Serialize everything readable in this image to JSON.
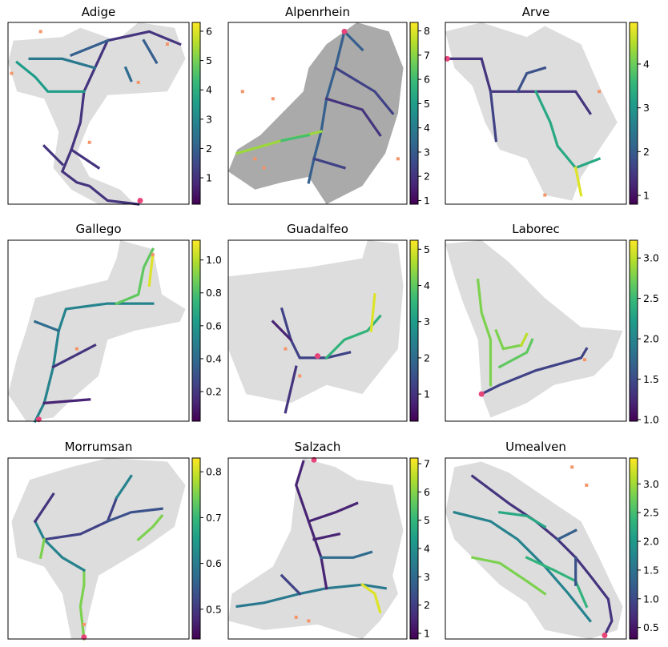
{
  "chart_data": [
    {
      "type": "heatmap",
      "title": "Adige",
      "colorbar": {
        "ticks": [
          "1",
          "2",
          "3",
          "4",
          "5",
          "6"
        ],
        "range": [
          0.1,
          6.3
        ]
      },
      "outlet_marker": "bottom-right",
      "basin_color": "#dddddd",
      "colormap": "viridis"
    },
    {
      "type": "heatmap",
      "title": "Alpenrhein",
      "colorbar": {
        "ticks": [
          "1",
          "2",
          "3",
          "4",
          "5",
          "6",
          "7",
          "8"
        ],
        "range": [
          0.85,
          8.35
        ]
      },
      "outlet_marker": "top-right",
      "basin_color": "#aaaaaa",
      "colormap": "viridis"
    },
    {
      "type": "heatmap",
      "title": "Arve",
      "colorbar": {
        "ticks": [
          "1",
          "2",
          "3",
          "4"
        ],
        "range": [
          0.8,
          4.95
        ]
      },
      "outlet_marker": "top-left",
      "basin_color": "#dddddd",
      "colormap": "viridis"
    },
    {
      "type": "heatmap",
      "title": "Gallego",
      "colorbar": {
        "ticks": [
          "0.2",
          "0.4",
          "0.6",
          "0.8",
          "1.0"
        ],
        "range": [
          0.02,
          1.12
        ]
      },
      "outlet_marker": "bottom-left",
      "basin_color": "#dddddd",
      "colormap": "viridis"
    },
    {
      "type": "heatmap",
      "title": "Guadalfeo",
      "colorbar": {
        "ticks": [
          "1",
          "2",
          "3",
          "4",
          "5"
        ],
        "range": [
          0.25,
          5.25
        ]
      },
      "outlet_marker": "center",
      "basin_color": "#dddddd",
      "colormap": "viridis"
    },
    {
      "type": "heatmap",
      "title": "Laborec",
      "colorbar": {
        "ticks": [
          "1.0",
          "1.5",
          "2.0",
          "2.5",
          "3.0"
        ],
        "range": [
          0.98,
          3.22
        ]
      },
      "outlet_marker": "bottom-left",
      "basin_color": "#dddddd",
      "colormap": "viridis"
    },
    {
      "type": "heatmap",
      "title": "Morrumsan",
      "colorbar": {
        "ticks": [
          "0.5",
          "0.6",
          "0.7",
          "0.8"
        ],
        "range": [
          0.435,
          0.83
        ]
      },
      "outlet_marker": "bottom-center",
      "basin_color": "#dddddd",
      "colormap": "viridis"
    },
    {
      "type": "heatmap",
      "title": "Salzach",
      "colorbar": {
        "ticks": [
          "1",
          "2",
          "3",
          "4",
          "5",
          "6",
          "7"
        ],
        "range": [
          0.8,
          7.2
        ]
      },
      "outlet_marker": "top-center",
      "basin_color": "#dddddd",
      "colormap": "viridis"
    },
    {
      "type": "heatmap",
      "title": "Umealven",
      "colorbar": {
        "ticks": [
          "0.5",
          "1.0",
          "1.5",
          "2.0",
          "2.5",
          "3.0"
        ],
        "range": [
          0.3,
          3.45
        ]
      },
      "outlet_marker": "bottom-right",
      "basin_color": "#dddddd",
      "colormap": "viridis"
    }
  ],
  "colors": {
    "outlet": "#e8457a",
    "gauge": "#f4956a",
    "axes": "#000000"
  }
}
